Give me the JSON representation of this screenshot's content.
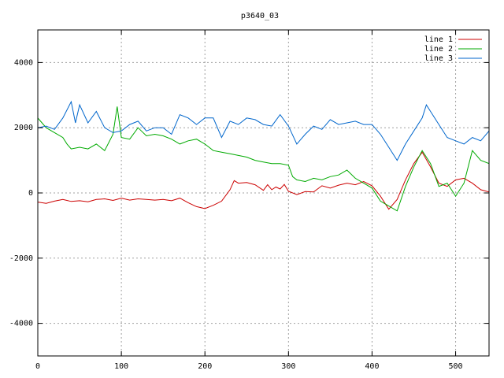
{
  "chart_data": {
    "type": "line",
    "title": "p3640_03",
    "xlabel": "",
    "ylabel": "",
    "xlim": [
      0,
      540
    ],
    "ylim": [
      -5000,
      5000
    ],
    "xticks": [
      0,
      100,
      200,
      300,
      400,
      500
    ],
    "yticks": [
      -4000,
      -2000,
      0,
      2000,
      4000
    ],
    "grid": true,
    "legend_position": "top-right",
    "series": [
      {
        "name": "line 1",
        "color": "#cc0000",
        "points": [
          [
            0,
            -280
          ],
          [
            10,
            -320
          ],
          [
            20,
            -250
          ],
          [
            30,
            -200
          ],
          [
            40,
            -260
          ],
          [
            50,
            -240
          ],
          [
            60,
            -270
          ],
          [
            70,
            -200
          ],
          [
            80,
            -180
          ],
          [
            90,
            -230
          ],
          [
            100,
            -160
          ],
          [
            110,
            -220
          ],
          [
            120,
            -180
          ],
          [
            130,
            -200
          ],
          [
            140,
            -220
          ],
          [
            150,
            -200
          ],
          [
            160,
            -240
          ],
          [
            170,
            -160
          ],
          [
            180,
            -300
          ],
          [
            190,
            -420
          ],
          [
            200,
            -480
          ],
          [
            210,
            -380
          ],
          [
            220,
            -250
          ],
          [
            230,
            100
          ],
          [
            235,
            380
          ],
          [
            240,
            300
          ],
          [
            250,
            320
          ],
          [
            260,
            250
          ],
          [
            270,
            80
          ],
          [
            275,
            250
          ],
          [
            280,
            100
          ],
          [
            285,
            180
          ],
          [
            290,
            120
          ],
          [
            295,
            260
          ],
          [
            300,
            50
          ],
          [
            310,
            -50
          ],
          [
            320,
            40
          ],
          [
            330,
            30
          ],
          [
            340,
            220
          ],
          [
            350,
            150
          ],
          [
            360,
            240
          ],
          [
            370,
            300
          ],
          [
            380,
            250
          ],
          [
            390,
            350
          ],
          [
            400,
            220
          ],
          [
            410,
            -100
          ],
          [
            420,
            -500
          ],
          [
            430,
            -200
          ],
          [
            440,
            400
          ],
          [
            450,
            900
          ],
          [
            460,
            1250
          ],
          [
            470,
            800
          ],
          [
            480,
            300
          ],
          [
            490,
            200
          ],
          [
            500,
            400
          ],
          [
            510,
            450
          ],
          [
            520,
            300
          ],
          [
            530,
            100
          ],
          [
            540,
            30
          ]
        ]
      },
      {
        "name": "line 2",
        "color": "#00aa00",
        "points": [
          [
            0,
            2300
          ],
          [
            5,
            2150
          ],
          [
            10,
            2000
          ],
          [
            20,
            1850
          ],
          [
            30,
            1700
          ],
          [
            35,
            1500
          ],
          [
            40,
            1350
          ],
          [
            50,
            1400
          ],
          [
            60,
            1350
          ],
          [
            70,
            1500
          ],
          [
            80,
            1300
          ],
          [
            90,
            1800
          ],
          [
            95,
            2650
          ],
          [
            100,
            1700
          ],
          [
            110,
            1650
          ],
          [
            120,
            2000
          ],
          [
            130,
            1750
          ],
          [
            140,
            1800
          ],
          [
            150,
            1750
          ],
          [
            160,
            1650
          ],
          [
            170,
            1500
          ],
          [
            180,
            1600
          ],
          [
            190,
            1650
          ],
          [
            200,
            1500
          ],
          [
            210,
            1300
          ],
          [
            220,
            1250
          ],
          [
            230,
            1200
          ],
          [
            240,
            1150
          ],
          [
            250,
            1100
          ],
          [
            260,
            1000
          ],
          [
            270,
            950
          ],
          [
            280,
            900
          ],
          [
            290,
            900
          ],
          [
            300,
            850
          ],
          [
            305,
            500
          ],
          [
            310,
            400
          ],
          [
            320,
            350
          ],
          [
            330,
            450
          ],
          [
            340,
            400
          ],
          [
            350,
            500
          ],
          [
            360,
            550
          ],
          [
            370,
            700
          ],
          [
            380,
            450
          ],
          [
            390,
            300
          ],
          [
            400,
            150
          ],
          [
            410,
            -250
          ],
          [
            420,
            -400
          ],
          [
            430,
            -550
          ],
          [
            440,
            200
          ],
          [
            450,
            800
          ],
          [
            460,
            1300
          ],
          [
            470,
            900
          ],
          [
            480,
            200
          ],
          [
            490,
            300
          ],
          [
            500,
            -100
          ],
          [
            510,
            300
          ],
          [
            520,
            1300
          ],
          [
            530,
            1000
          ],
          [
            540,
            900
          ]
        ]
      },
      {
        "name": "line 3",
        "color": "#0066cc",
        "points": [
          [
            0,
            2000
          ],
          [
            10,
            2050
          ],
          [
            20,
            1950
          ],
          [
            30,
            2300
          ],
          [
            40,
            2800
          ],
          [
            45,
            2150
          ],
          [
            50,
            2700
          ],
          [
            60,
            2150
          ],
          [
            70,
            2500
          ],
          [
            80,
            2000
          ],
          [
            90,
            1850
          ],
          [
            100,
            1900
          ],
          [
            110,
            2100
          ],
          [
            120,
            2200
          ],
          [
            130,
            1900
          ],
          [
            140,
            2000
          ],
          [
            150,
            2000
          ],
          [
            160,
            1800
          ],
          [
            170,
            2400
          ],
          [
            180,
            2300
          ],
          [
            190,
            2100
          ],
          [
            200,
            2300
          ],
          [
            210,
            2300
          ],
          [
            220,
            1700
          ],
          [
            230,
            2200
          ],
          [
            240,
            2100
          ],
          [
            250,
            2300
          ],
          [
            260,
            2250
          ],
          [
            270,
            2100
          ],
          [
            280,
            2050
          ],
          [
            290,
            2400
          ],
          [
            300,
            2050
          ],
          [
            310,
            1500
          ],
          [
            320,
            1800
          ],
          [
            330,
            2050
          ],
          [
            340,
            1950
          ],
          [
            350,
            2250
          ],
          [
            360,
            2100
          ],
          [
            370,
            2150
          ],
          [
            380,
            2200
          ],
          [
            390,
            2100
          ],
          [
            400,
            2100
          ],
          [
            410,
            1800
          ],
          [
            420,
            1400
          ],
          [
            430,
            1000
          ],
          [
            440,
            1500
          ],
          [
            450,
            1900
          ],
          [
            460,
            2300
          ],
          [
            465,
            2700
          ],
          [
            470,
            2500
          ],
          [
            480,
            2100
          ],
          [
            490,
            1700
          ],
          [
            500,
            1600
          ],
          [
            510,
            1500
          ],
          [
            520,
            1700
          ],
          [
            530,
            1600
          ],
          [
            540,
            1900
          ]
        ]
      }
    ]
  }
}
